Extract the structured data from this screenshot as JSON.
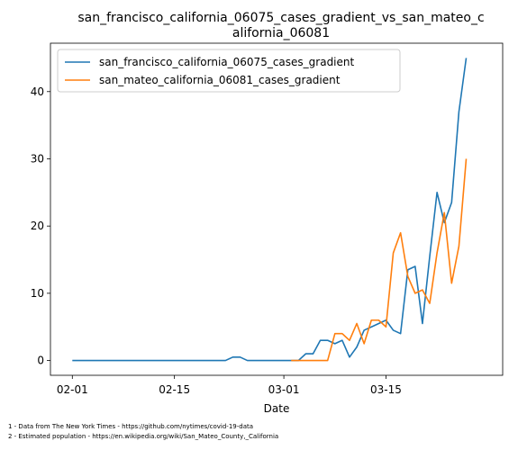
{
  "chart_data": {
    "type": "line",
    "title_lines": [
      "san_francisco_california_06075_cases_gradient_vs_san_mateo_c",
      "alifornia_06081"
    ],
    "xlabel": "Date",
    "ylabel": "",
    "x_tick_labels": [
      "02-01",
      "02-15",
      "03-01",
      "03-15"
    ],
    "x_tick_dates": [
      "2020-02-01",
      "2020-02-15",
      "2020-03-01",
      "2020-03-15"
    ],
    "xlim": [
      "2020-01-29",
      "2020-03-31"
    ],
    "ylim": [
      -2.2,
      47.2
    ],
    "y_ticks": [
      0,
      10,
      20,
      30,
      40
    ],
    "grid": false,
    "legend_position": "upper-left",
    "series": [
      {
        "name": "san_francisco_california_06075_cases_gradient",
        "color": "#1f77b4",
        "points": [
          [
            "2020-02-01",
            0
          ],
          [
            "2020-02-02",
            0
          ],
          [
            "2020-02-03",
            0
          ],
          [
            "2020-02-04",
            0
          ],
          [
            "2020-02-05",
            0
          ],
          [
            "2020-02-06",
            0
          ],
          [
            "2020-02-07",
            0
          ],
          [
            "2020-02-08",
            0
          ],
          [
            "2020-02-09",
            0
          ],
          [
            "2020-02-10",
            0
          ],
          [
            "2020-02-11",
            0
          ],
          [
            "2020-02-12",
            0
          ],
          [
            "2020-02-13",
            0
          ],
          [
            "2020-02-14",
            0
          ],
          [
            "2020-02-15",
            0
          ],
          [
            "2020-02-16",
            0
          ],
          [
            "2020-02-17",
            0
          ],
          [
            "2020-02-18",
            0
          ],
          [
            "2020-02-19",
            0
          ],
          [
            "2020-02-20",
            0
          ],
          [
            "2020-02-21",
            0
          ],
          [
            "2020-02-22",
            0
          ],
          [
            "2020-02-23",
            0.5
          ],
          [
            "2020-02-24",
            0.5
          ],
          [
            "2020-02-25",
            0
          ],
          [
            "2020-02-26",
            0
          ],
          [
            "2020-02-27",
            0
          ],
          [
            "2020-02-28",
            0
          ],
          [
            "2020-02-29",
            0
          ],
          [
            "2020-03-01",
            0
          ],
          [
            "2020-03-02",
            0
          ],
          [
            "2020-03-03",
            0
          ],
          [
            "2020-03-04",
            1
          ],
          [
            "2020-03-05",
            1
          ],
          [
            "2020-03-06",
            3
          ],
          [
            "2020-03-07",
            3
          ],
          [
            "2020-03-08",
            2.5
          ],
          [
            "2020-03-09",
            3
          ],
          [
            "2020-03-10",
            0.5
          ],
          [
            "2020-03-11",
            2
          ],
          [
            "2020-03-12",
            4.5
          ],
          [
            "2020-03-13",
            5
          ],
          [
            "2020-03-14",
            5.5
          ],
          [
            "2020-03-15",
            6
          ],
          [
            "2020-03-16",
            4.5
          ],
          [
            "2020-03-17",
            4
          ],
          [
            "2020-03-18",
            13.5
          ],
          [
            "2020-03-19",
            14
          ],
          [
            "2020-03-20",
            5.5
          ],
          [
            "2020-03-21",
            15.5
          ],
          [
            "2020-03-22",
            25
          ],
          [
            "2020-03-23",
            20.5
          ],
          [
            "2020-03-24",
            23.5
          ],
          [
            "2020-03-25",
            37
          ],
          [
            "2020-03-26",
            45
          ]
        ]
      },
      {
        "name": "san_mateo_california_06081_cases_gradient",
        "color": "#ff7f0e",
        "points": [
          [
            "2020-03-02",
            0
          ],
          [
            "2020-03-03",
            0
          ],
          [
            "2020-03-04",
            0
          ],
          [
            "2020-03-05",
            0
          ],
          [
            "2020-03-06",
            0
          ],
          [
            "2020-03-07",
            0
          ],
          [
            "2020-03-08",
            4
          ],
          [
            "2020-03-09",
            4
          ],
          [
            "2020-03-10",
            3
          ],
          [
            "2020-03-11",
            5.5
          ],
          [
            "2020-03-12",
            2.5
          ],
          [
            "2020-03-13",
            6
          ],
          [
            "2020-03-14",
            6
          ],
          [
            "2020-03-15",
            5
          ],
          [
            "2020-03-16",
            16
          ],
          [
            "2020-03-17",
            19
          ],
          [
            "2020-03-18",
            12.5
          ],
          [
            "2020-03-19",
            10
          ],
          [
            "2020-03-20",
            10.5
          ],
          [
            "2020-03-21",
            8.5
          ],
          [
            "2020-03-22",
            16
          ],
          [
            "2020-03-23",
            22
          ],
          [
            "2020-03-24",
            11.5
          ],
          [
            "2020-03-25",
            17
          ],
          [
            "2020-03-26",
            30
          ]
        ]
      }
    ]
  },
  "footnotes": [
    "1 - Data from The New York Times - https://github.com/nytimes/covid-19-data",
    "2 - Estimated population - https://en.wikipedia.org/wiki/San_Mateo_County,_California"
  ]
}
